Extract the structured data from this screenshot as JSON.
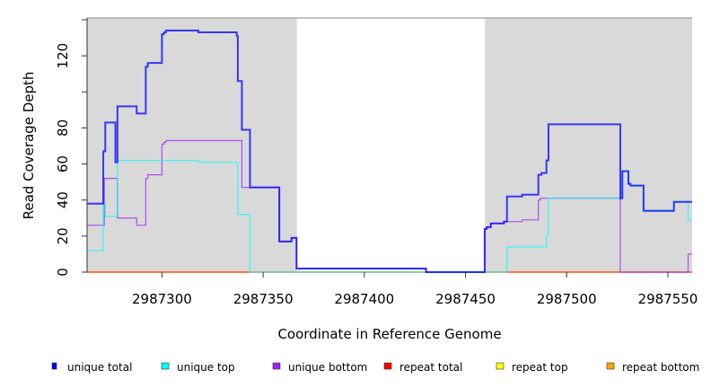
{
  "chart_data": {
    "type": "line",
    "step": true,
    "xlabel": "Coordinate in Reference Genome",
    "ylabel": "Read Coverage Depth",
    "xlim": [
      2987263,
      2987562
    ],
    "ylim": [
      0,
      141
    ],
    "x_ticks": [
      2987300,
      2987350,
      2987400,
      2987450,
      2987500,
      2987550
    ],
    "x_tick_labels": [
      "2987300",
      "2987350",
      "2987400",
      "2987450",
      "2987500",
      "2987550"
    ],
    "y_ticks": [
      0,
      20,
      40,
      60,
      80,
      100,
      120,
      140
    ],
    "y_tick_labels": [
      "0",
      "20",
      "40",
      "60",
      "80",
      "",
      "120",
      ""
    ],
    "shaded_regions": [
      [
        2987263,
        2987366.7
      ],
      [
        2987459.6,
        2987562
      ]
    ],
    "shade_color": "#d9d9d9",
    "legend_placement": "bottom",
    "series": [
      {
        "name": "unique total",
        "color": "#0000ff",
        "steps": [
          [
            2987263,
            38
          ],
          [
            2987271,
            67
          ],
          [
            2987272,
            83
          ],
          [
            2987277,
            61
          ],
          [
            2987278,
            92
          ],
          [
            2987287.5,
            88
          ],
          [
            2987292,
            114
          ],
          [
            2987293,
            116
          ],
          [
            2987300,
            132
          ],
          [
            2987301,
            133
          ],
          [
            2987302,
            134
          ],
          [
            2987318,
            133
          ],
          [
            2987337,
            131
          ],
          [
            2987337.5,
            106
          ],
          [
            2987339.5,
            79
          ],
          [
            2987343.5,
            47
          ],
          [
            2987358,
            17
          ],
          [
            2987364,
            19
          ],
          [
            2987366.5,
            2
          ],
          [
            2987430.5,
            0
          ],
          [
            2987459.5,
            24
          ],
          [
            2987460.5,
            25
          ],
          [
            2987462.5,
            27
          ],
          [
            2987469,
            28
          ],
          [
            2987470.5,
            42
          ],
          [
            2987478,
            43
          ],
          [
            2987486,
            54
          ],
          [
            2987487.5,
            55
          ],
          [
            2987490,
            62
          ],
          [
            2987491,
            82
          ],
          [
            2987526.5,
            41
          ],
          [
            2987527.5,
            56
          ],
          [
            2987530.5,
            49
          ],
          [
            2987531.5,
            48
          ],
          [
            2987538,
            34
          ],
          [
            2987553,
            39
          ]
        ]
      },
      {
        "name": "unique top",
        "color": "#00ffff",
        "steps": [
          [
            2987263,
            12
          ],
          [
            2987271,
            38
          ],
          [
            2987272,
            31
          ],
          [
            2987278,
            62
          ],
          [
            2987318,
            61
          ],
          [
            2987337,
            60
          ],
          [
            2987337.5,
            32
          ],
          [
            2987343.5,
            0
          ],
          [
            2987470.5,
            14
          ],
          [
            2987490,
            21
          ],
          [
            2987491,
            41
          ],
          [
            2987527.5,
            56
          ],
          [
            2987530.5,
            49
          ],
          [
            2987531.5,
            48
          ],
          [
            2987538,
            34
          ],
          [
            2987553,
            39
          ],
          [
            2987560,
            29
          ]
        ]
      },
      {
        "name": "unique bottom",
        "color": "#a020f0",
        "steps": [
          [
            2987263,
            26
          ],
          [
            2987271.5,
            52
          ],
          [
            2987278,
            30
          ],
          [
            2987287.5,
            26
          ],
          [
            2987292,
            52
          ],
          [
            2987293,
            54
          ],
          [
            2987300,
            71
          ],
          [
            2987301,
            72
          ],
          [
            2987302,
            73
          ],
          [
            2987339.5,
            47
          ],
          [
            2987358,
            17
          ],
          [
            2987364,
            19
          ],
          [
            2987366.5,
            2
          ],
          [
            2987430.5,
            0
          ],
          [
            2987459.5,
            24
          ],
          [
            2987460.5,
            25
          ],
          [
            2987462.5,
            27
          ],
          [
            2987469,
            28
          ],
          [
            2987478,
            29
          ],
          [
            2987486,
            40
          ],
          [
            2987487,
            41
          ],
          [
            2987526.5,
            0
          ],
          [
            2987560,
            10
          ]
        ]
      },
      {
        "name": "repeat total",
        "color": "#ff0000",
        "steps": [
          [
            2987263,
            0
          ]
        ]
      },
      {
        "name": "repeat top",
        "color": "#ffff00",
        "steps": [
          [
            2987263,
            0
          ]
        ]
      },
      {
        "name": "repeat bottom",
        "color": "#ffa500",
        "steps": [
          [
            2987263,
            0
          ]
        ]
      }
    ]
  }
}
